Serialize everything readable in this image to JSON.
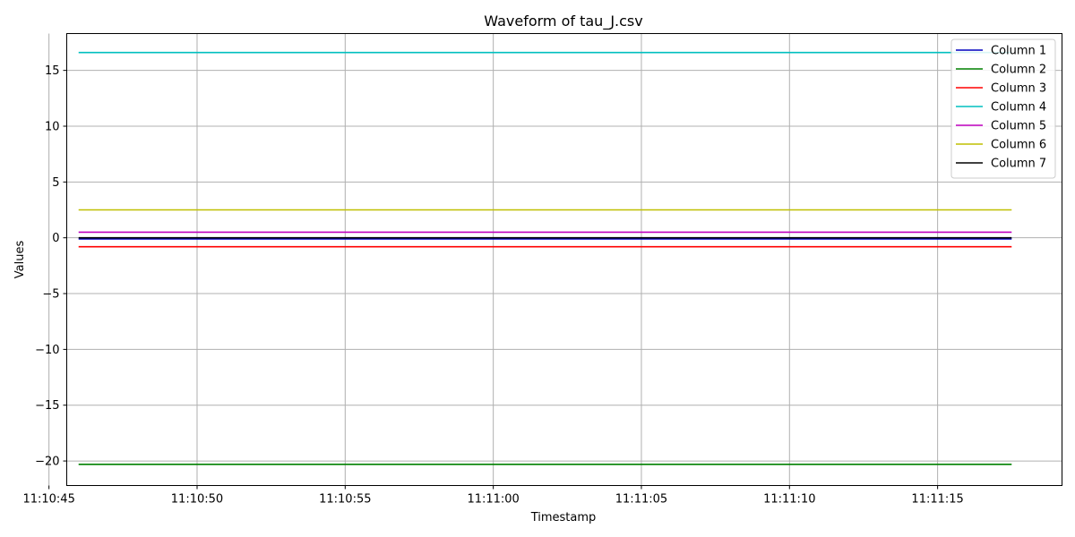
{
  "chart_data": {
    "type": "line",
    "title": "Waveform of tau_J.csv",
    "xlabel": "Timestamp",
    "ylabel": "Values",
    "xlim": [
      "11:10:45.6",
      "11:11:19.2"
    ],
    "ylim": [
      -22.2,
      18.3
    ],
    "x_ticks": [
      "11:10:45",
      "11:10:50",
      "11:10:55",
      "11:11:00",
      "11:11:05",
      "11:11:10",
      "11:11:15"
    ],
    "y_ticks": [
      {
        "value": 15,
        "label": "15"
      },
      {
        "value": 10,
        "label": "10"
      },
      {
        "value": 5,
        "label": "5"
      },
      {
        "value": 0,
        "label": "0"
      },
      {
        "value": -5,
        "label": "−5"
      },
      {
        "value": -10,
        "label": "−10"
      },
      {
        "value": -15,
        "label": "−15"
      },
      {
        "value": -20,
        "label": "−20"
      }
    ],
    "grid": true,
    "legend_position": "top-right",
    "x": [
      "11:10:46",
      "11:11:17.5"
    ],
    "series": [
      {
        "name": "Column 1",
        "color": "#0000bf",
        "values": [
          -0.1,
          -0.1
        ]
      },
      {
        "name": "Column 2",
        "color": "#008000",
        "values": [
          -20.3,
          -20.3
        ]
      },
      {
        "name": "Column 3",
        "color": "#ff0000",
        "values": [
          -0.8,
          -0.8
        ]
      },
      {
        "name": "Column 4",
        "color": "#00bfbf",
        "values": [
          16.6,
          16.6
        ]
      },
      {
        "name": "Column 5",
        "color": "#bf00bf",
        "values": [
          0.5,
          0.5
        ]
      },
      {
        "name": "Column 6",
        "color": "#bfbf00",
        "values": [
          2.5,
          2.5
        ]
      },
      {
        "name": "Column 7",
        "color": "#000000",
        "values": [
          0.0,
          0.0
        ]
      }
    ]
  }
}
